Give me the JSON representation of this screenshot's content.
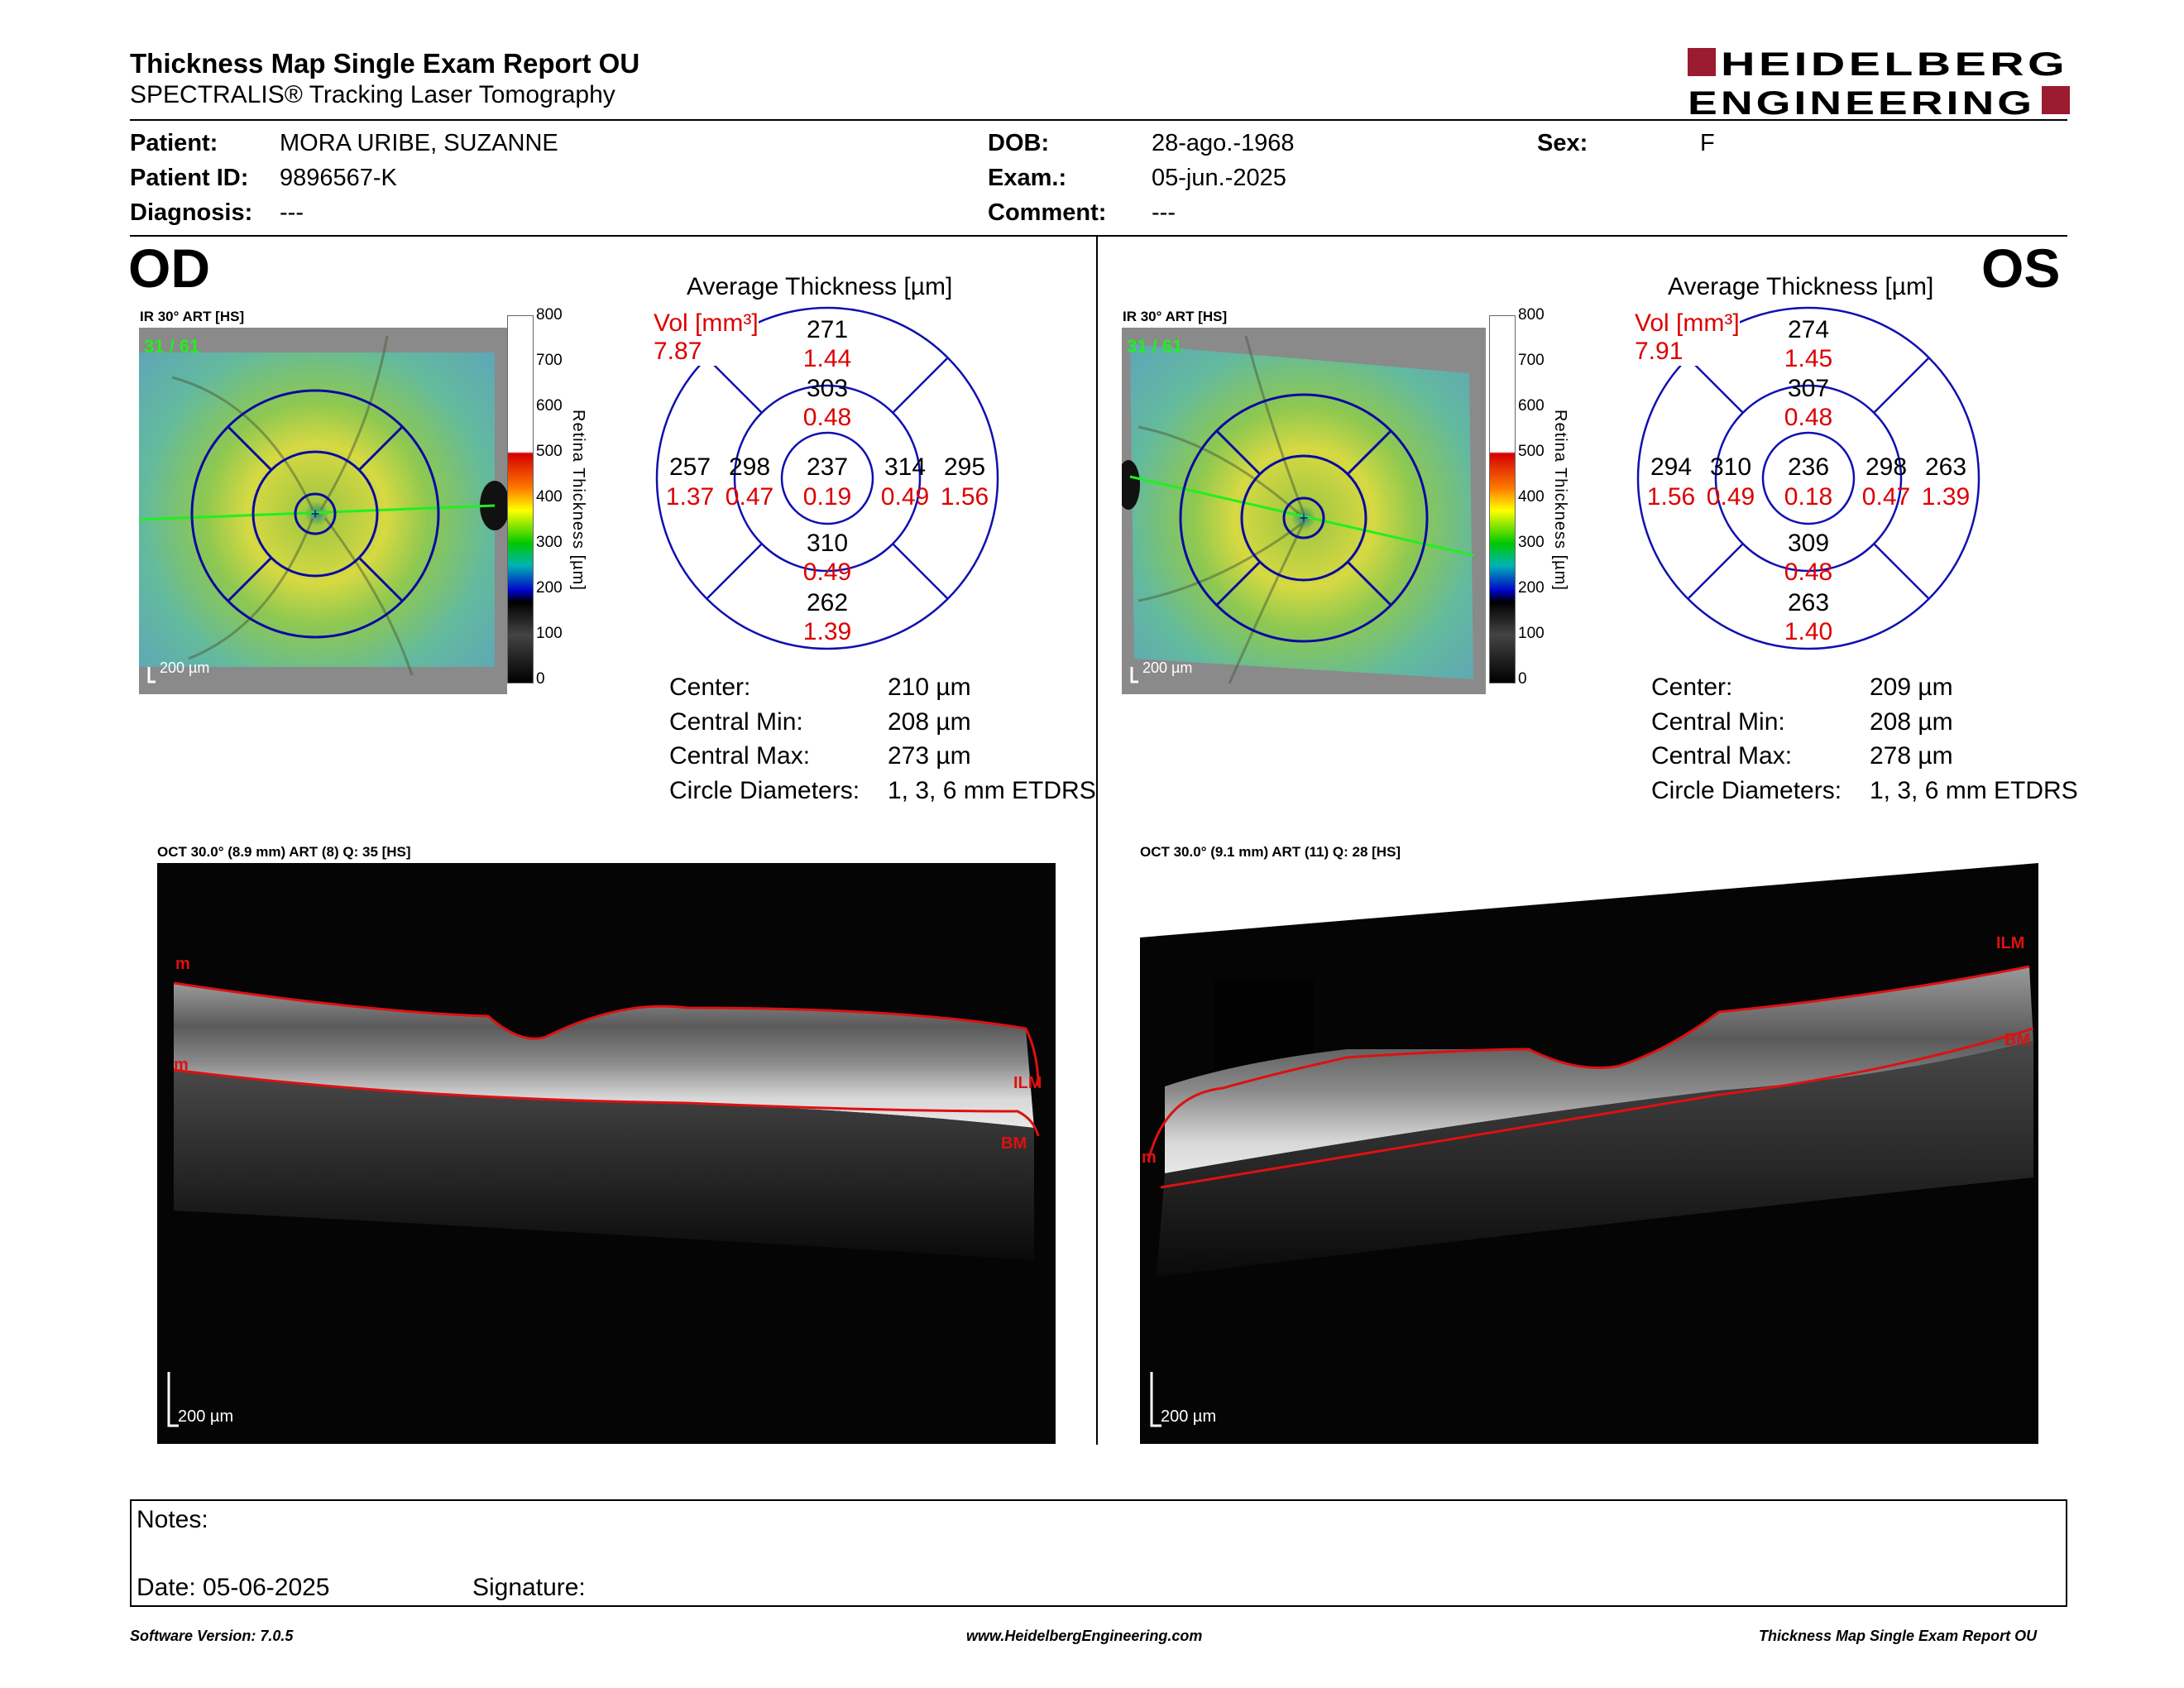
{
  "header": {
    "title": "Thickness Map Single Exam Report OU",
    "subtitle": "SPECTRALIS® Tracking Laser Tomography",
    "logo_line1": "HEIDELBERG",
    "logo_line2": "ENGINEERING",
    "brand_color": "#9b1b30"
  },
  "patient": {
    "patient_label": "Patient:",
    "patient": "MORA URIBE, SUZANNE",
    "id_label": "Patient ID:",
    "id": "9896567-K",
    "diagnosis_label": "Diagnosis:",
    "diagnosis": "---",
    "dob_label": "DOB:",
    "dob": "28-ago.-1968",
    "exam_label": "Exam.:",
    "exam": "05-jun.-2025",
    "comment_label": "Comment:",
    "comment": "---",
    "sex_label": "Sex:",
    "sex": "F"
  },
  "color_scale": {
    "title": "Retina Thickness [µm]",
    "ticks": [
      "800",
      "700",
      "600",
      "500",
      "400",
      "300",
      "200",
      "100",
      "0"
    ]
  },
  "od": {
    "eye": "OD",
    "map_caption": "IR 30° ART [HS]",
    "map_counter": "31 / 61",
    "map_scale": "200 µm",
    "avg_title": "Average Thickness [µm]",
    "vol_label": "Vol [mm³]",
    "vol_total": "7.87",
    "sectors": {
      "outer_sup": {
        "t": "271",
        "v": "1.44"
      },
      "inner_sup": {
        "t": "303",
        "v": "0.48"
      },
      "outer_left": {
        "t": "257",
        "v": "1.37"
      },
      "inner_left": {
        "t": "298",
        "v": "0.47"
      },
      "center": {
        "t": "237",
        "v": "0.19"
      },
      "inner_right": {
        "t": "314",
        "v": "0.49"
      },
      "outer_right": {
        "t": "295",
        "v": "1.56"
      },
      "inner_inf": {
        "t": "310",
        "v": "0.49"
      },
      "outer_inf": {
        "t": "262",
        "v": "1.39"
      }
    },
    "stats": {
      "center_label": "Center:",
      "center": "210 µm",
      "min_label": "Central Min:",
      "min": "208 µm",
      "max_label": "Central Max:",
      "max": "273 µm",
      "diam_label": "Circle Diameters:",
      "diam": "1, 3, 6 mm ETDRS"
    },
    "oct_caption": "OCT 30.0° (8.9 mm) ART (8) Q: 35 [HS]",
    "oct_scale": "200 µm",
    "oct_labels": {
      "m1": "m",
      "m2": "m",
      "ilm": "ILM",
      "bm": "BM"
    }
  },
  "os": {
    "eye": "OS",
    "map_caption": "IR 30° ART [HS]",
    "map_counter": "31 / 61",
    "map_scale": "200 µm",
    "avg_title": "Average Thickness [µm]",
    "vol_label": "Vol [mm³]",
    "vol_total": "7.91",
    "sectors": {
      "outer_sup": {
        "t": "274",
        "v": "1.45"
      },
      "inner_sup": {
        "t": "307",
        "v": "0.48"
      },
      "outer_left": {
        "t": "294",
        "v": "1.56"
      },
      "inner_left": {
        "t": "310",
        "v": "0.49"
      },
      "center": {
        "t": "236",
        "v": "0.18"
      },
      "inner_right": {
        "t": "298",
        "v": "0.47"
      },
      "outer_right": {
        "t": "263",
        "v": "1.39"
      },
      "inner_inf": {
        "t": "309",
        "v": "0.48"
      },
      "outer_inf": {
        "t": "263",
        "v": "1.40"
      }
    },
    "stats": {
      "center_label": "Center:",
      "center": "209 µm",
      "min_label": "Central Min:",
      "min": "208 µm",
      "max_label": "Central Max:",
      "max": "278 µm",
      "diam_label": "Circle Diameters:",
      "diam": "1, 3, 6 mm ETDRS"
    },
    "oct_caption": "OCT 30.0° (9.1 mm) ART (11) Q: 28 [HS]",
    "oct_scale": "200 µm",
    "oct_labels": {
      "ilm": "ILM",
      "bm": "BM",
      "m": "m"
    }
  },
  "notes": {
    "notes_label": "Notes:",
    "date_label": "Date: 05-06-2025",
    "signature_label": "Signature:"
  },
  "footer": {
    "version": "Software Version: 7.0.5",
    "url": "www.HeidelbergEngineering.com",
    "report": "Thickness Map Single Exam Report OU"
  }
}
